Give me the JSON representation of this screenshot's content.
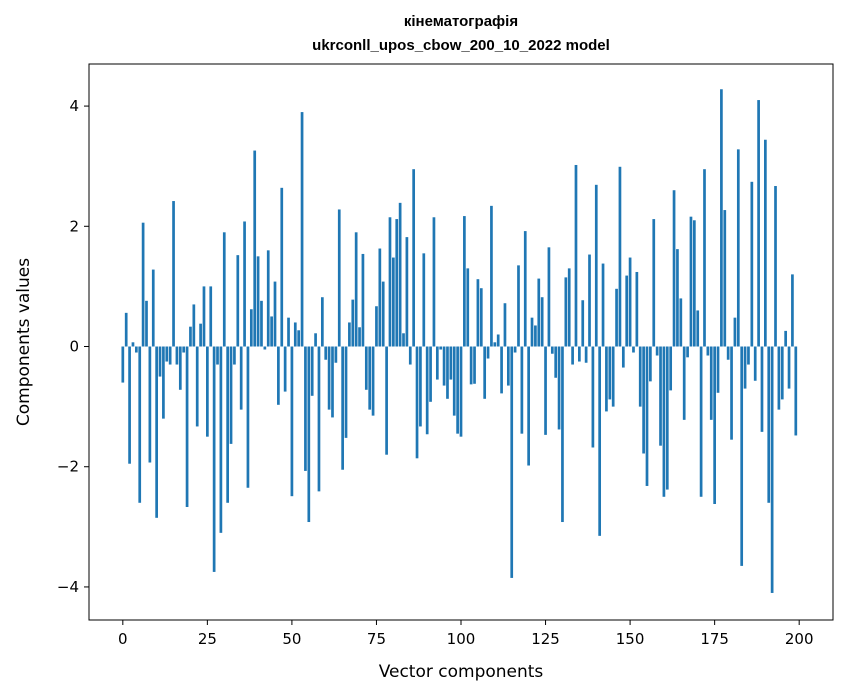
{
  "chart_data": {
    "type": "bar",
    "title_line1": "кінематографія",
    "title_line2": "ukrconll_upos_cbow_200_10_2022 model",
    "xlabel": "Vector components",
    "ylabel": "Components values",
    "xlim": [
      -10,
      210
    ],
    "ylim": [
      -4.55,
      4.7
    ],
    "xticks": [
      0,
      25,
      50,
      75,
      100,
      125,
      150,
      175,
      200
    ],
    "yticks": [
      -4,
      -2,
      0,
      2,
      4
    ],
    "ytick_labels": [
      "−4",
      "−2",
      "0",
      "2",
      "4"
    ],
    "bar_color": "#1f77b4",
    "grid": false,
    "values": [
      -0.6,
      0.56,
      -1.95,
      0.07,
      -0.1,
      -2.6,
      2.06,
      0.76,
      -1.93,
      1.28,
      -2.85,
      -0.5,
      -1.2,
      -0.25,
      -0.3,
      2.42,
      -0.3,
      -0.72,
      -0.1,
      -2.67,
      0.33,
      0.7,
      -1.33,
      0.38,
      1.0,
      -1.5,
      1.0,
      -3.75,
      -0.3,
      -3.1,
      1.9,
      -2.6,
      -1.62,
      -0.3,
      1.52,
      -1.05,
      2.08,
      -2.35,
      0.62,
      3.26,
      1.5,
      0.76,
      -0.05,
      1.6,
      0.5,
      1.08,
      -0.97,
      2.64,
      -0.75,
      0.48,
      -2.49,
      0.4,
      0.27,
      3.9,
      -2.07,
      -2.92,
      -0.82,
      0.22,
      -2.41,
      0.82,
      -0.22,
      -1.05,
      -1.18,
      -0.27,
      2.28,
      -2.05,
      -1.52,
      0.4,
      0.78,
      1.9,
      0.32,
      1.54,
      -0.72,
      -1.05,
      -1.15,
      0.67,
      1.63,
      1.08,
      -1.8,
      2.15,
      1.48,
      2.12,
      2.39,
      0.22,
      1.82,
      -0.3,
      2.95,
      -1.86,
      -1.33,
      1.55,
      -1.46,
      -0.92,
      2.15,
      -0.55,
      -0.05,
      -0.65,
      -0.87,
      -0.55,
      -1.15,
      -1.45,
      -1.5,
      2.17,
      1.3,
      -0.63,
      -0.62,
      1.12,
      0.97,
      -0.87,
      -0.2,
      2.34,
      0.07,
      0.2,
      -0.78,
      0.72,
      -0.65,
      -3.85,
      -0.1,
      1.35,
      -1.45,
      1.92,
      -1.98,
      0.48,
      0.35,
      1.13,
      0.82,
      -1.47,
      1.65,
      -0.12,
      -0.52,
      -1.38,
      -2.92,
      1.15,
      1.3,
      -0.3,
      3.02,
      -0.25,
      0.77,
      -0.27,
      1.53,
      -1.68,
      2.69,
      -3.15,
      1.38,
      -1.08,
      -0.88,
      -1.0,
      0.96,
      2.99,
      -0.35,
      1.18,
      1.48,
      -0.1,
      1.24,
      -1.0,
      -1.78,
      -2.32,
      -0.58,
      2.12,
      -0.15,
      -1.65,
      -2.5,
      -2.38,
      -0.73,
      2.6,
      1.62,
      0.8,
      -1.22,
      -0.18,
      2.16,
      2.1,
      0.6,
      -2.5,
      2.95,
      -0.15,
      -1.22,
      -2.62,
      -0.77,
      4.28,
      2.27,
      -0.22,
      -1.55,
      0.48,
      3.28,
      -3.65,
      -0.7,
      -0.3,
      2.74,
      -0.57,
      4.1,
      -1.42,
      3.44,
      -2.6,
      -4.1,
      2.67,
      -1.05,
      -0.88,
      0.26,
      -0.7,
      1.2,
      -1.48
    ]
  }
}
